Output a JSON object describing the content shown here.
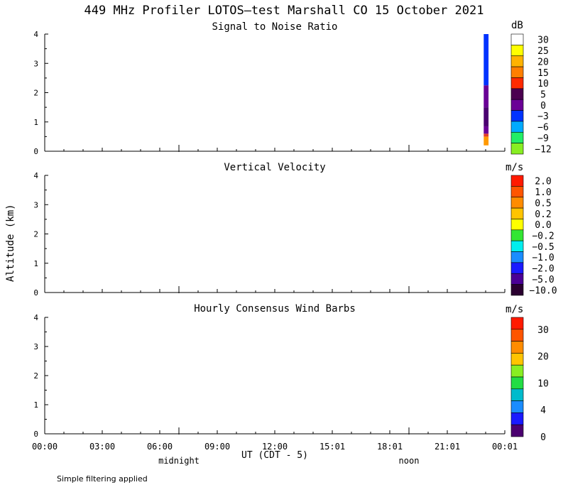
{
  "title": "449 MHz Profiler LOTOS—test Marshall CO 15 October 2021",
  "ylabel": "Altitude (km)",
  "xlabel": "UT  (CDT - 5)",
  "footnote": "Simple filtering applied",
  "x_tick_labels": [
    "00:00",
    "03:00",
    "06:00",
    "09:00",
    "12:00",
    "15:01",
    "18:01",
    "21:01",
    "00:01"
  ],
  "x_annotations": [
    {
      "label": "midnight",
      "hour": 7.0
    },
    {
      "label": "noon",
      "hour": 19.0
    }
  ],
  "colors": {
    "axis": "#000000",
    "background": "#ffffff"
  },
  "chart_data": [
    {
      "type": "heatmap",
      "title": "Signal to Noise Ratio",
      "units": "dB",
      "xlim": [
        0,
        24
      ],
      "ylim": [
        0,
        4
      ],
      "y_ticks": [
        "0",
        "1",
        "2",
        "3",
        "4"
      ],
      "colorbar_labels": [
        "30",
        "25",
        "20",
        "15",
        "10",
        "5",
        "0",
        "−3",
        "−6",
        "−9",
        "−12"
      ],
      "colorbar_colors": [
        "#ffffff",
        "#ffff00",
        "#ffb300",
        "#ff7f00",
        "#ff2a00",
        "#4b0050",
        "#6a0096",
        "#0033ff",
        "#00aaff",
        "#22ee66",
        "#88ee22"
      ],
      "columns": [
        {
          "time_start": 22.9,
          "time_end": 23.15,
          "cells": [
            {
              "alt_from": 0.2,
              "alt_to": 0.5,
              "color": "#ff9900"
            },
            {
              "alt_from": 0.5,
              "alt_to": 0.6,
              "color": "#e0402a"
            },
            {
              "alt_from": 0.6,
              "alt_to": 0.85,
              "color": "#6a0096"
            },
            {
              "alt_from": 0.85,
              "alt_to": 1.5,
              "color": "#4b0070"
            },
            {
              "alt_from": 1.5,
              "alt_to": 2.25,
              "color": "#6a0096"
            },
            {
              "alt_from": 2.25,
              "alt_to": 4.0,
              "color": "#0033ff"
            }
          ]
        }
      ]
    },
    {
      "type": "heatmap",
      "title": "Vertical Velocity",
      "units": "m/s",
      "xlim": [
        0,
        24
      ],
      "ylim": [
        0,
        4
      ],
      "y_ticks": [
        "0",
        "1",
        "2",
        "3",
        "4"
      ],
      "colorbar_labels": [
        "2.0",
        "1.0",
        "0.5",
        "0.2",
        "0.0",
        "−0.2",
        "−0.5",
        "−1.0",
        "−2.0",
        "−5.0",
        "−10.0"
      ],
      "colorbar_colors": [
        "#ff1a00",
        "#ff5500",
        "#ff8c00",
        "#ffc400",
        "#ffff00",
        "#33e633",
        "#00eeee",
        "#1a8cff",
        "#1a1aff",
        "#4b0096",
        "#2a0030"
      ],
      "columns": []
    },
    {
      "type": "heatmap",
      "title": "Hourly Consensus Wind Barbs",
      "units": "m/s",
      "xlim": [
        0,
        24
      ],
      "ylim": [
        0,
        4
      ],
      "y_ticks": [
        "0",
        "1",
        "2",
        "3",
        "4"
      ],
      "colorbar_labels": [
        "30",
        "20",
        "10",
        "4",
        "0"
      ],
      "colorbar_colors": [
        "#ff1a00",
        "#ff5500",
        "#ff8c00",
        "#ffc400",
        "#88ee22",
        "#22dd44",
        "#00bbcc",
        "#1a8cff",
        "#1a1aff",
        "#4b0070"
      ],
      "columns": []
    }
  ]
}
